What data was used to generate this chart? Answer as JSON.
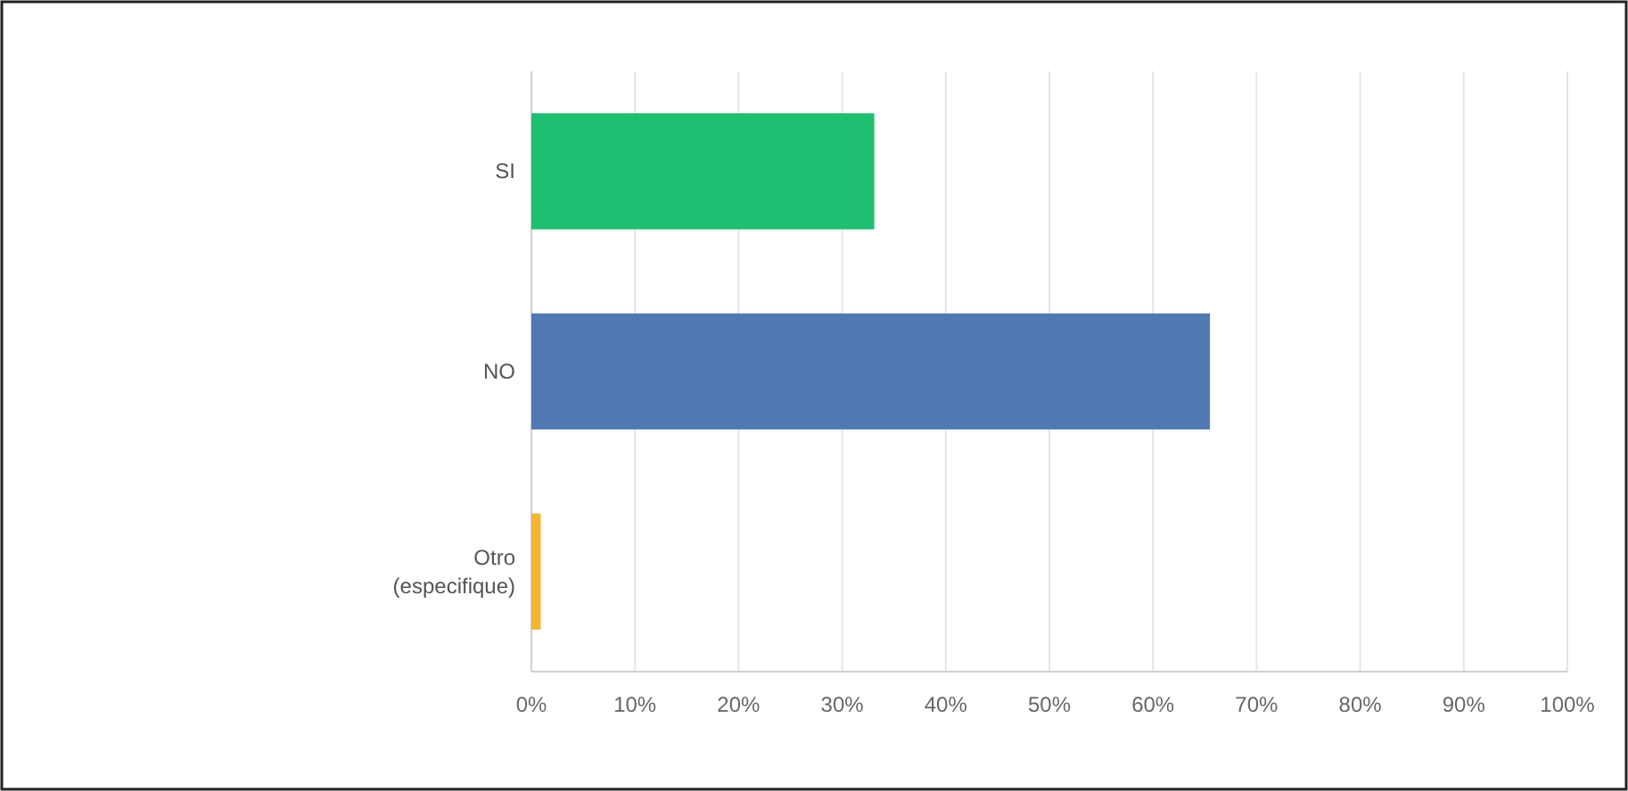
{
  "chart_data": {
    "type": "bar",
    "orientation": "horizontal",
    "categories": [
      "SI",
      "NO",
      "Otro\n(especifique)"
    ],
    "values": [
      33.1,
      65.5,
      0.9
    ],
    "colors": [
      "#1fbf71",
      "#5079b4",
      "#f1b52f"
    ],
    "xlim": [
      0,
      100
    ],
    "xticks": [
      {
        "value": 0,
        "label": "0%"
      },
      {
        "value": 10,
        "label": "10%"
      },
      {
        "value": 20,
        "label": "20%"
      },
      {
        "value": 30,
        "label": "30%"
      },
      {
        "value": 40,
        "label": "40%"
      },
      {
        "value": 50,
        "label": "50%"
      },
      {
        "value": 60,
        "label": "60%"
      },
      {
        "value": 70,
        "label": "70%"
      },
      {
        "value": 80,
        "label": "80%"
      },
      {
        "value": 90,
        "label": "90%"
      },
      {
        "value": 100,
        "label": "100%"
      }
    ],
    "grid": "x"
  }
}
